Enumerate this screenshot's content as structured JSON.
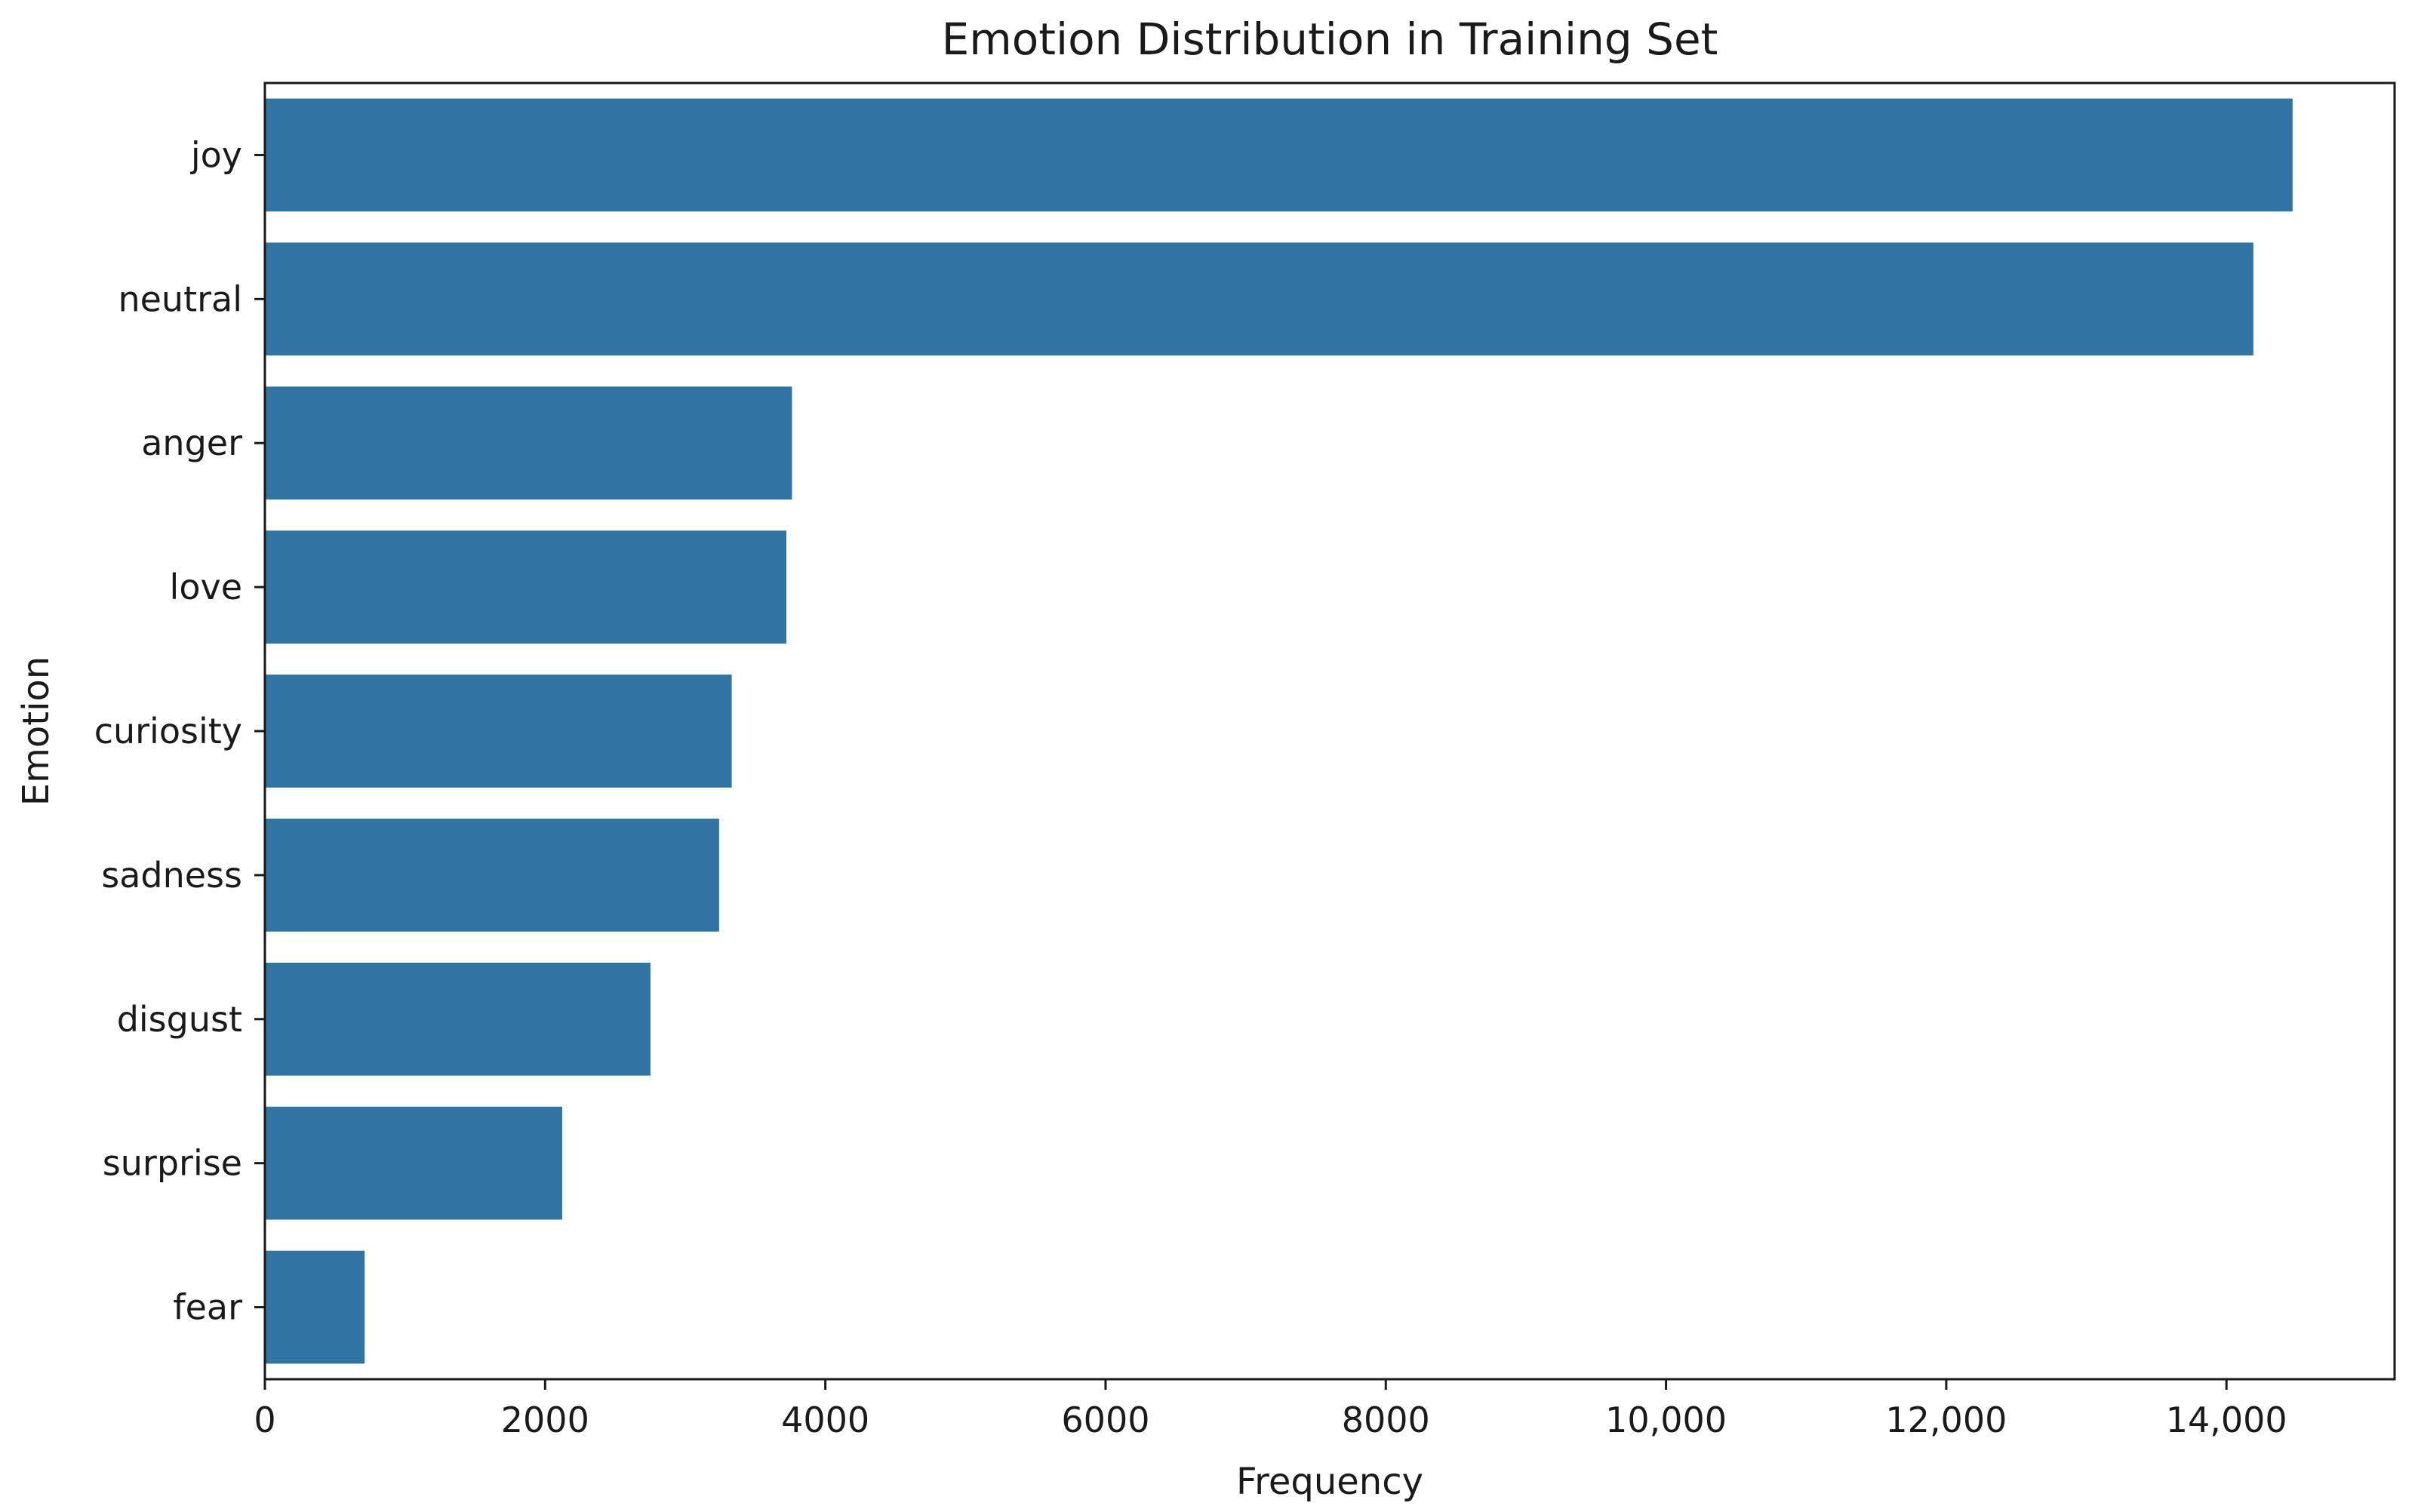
{
  "chart_data": {
    "type": "bar",
    "orientation": "horizontal",
    "title": "Emotion Distribution in Training Set",
    "xlabel": "Frequency",
    "ylabel": "Emotion",
    "categories": [
      "joy",
      "neutral",
      "anger",
      "love",
      "curiosity",
      "sadness",
      "disgust",
      "surprise",
      "fear"
    ],
    "values": [
      14480,
      14200,
      3770,
      3730,
      3340,
      3250,
      2760,
      2130,
      720
    ],
    "xlim": [
      0,
      15200
    ],
    "xticks": [
      0,
      2000,
      4000,
      6000,
      8000,
      10000,
      12000,
      14000
    ],
    "xtick_labels": [
      "0",
      "2000",
      "4000",
      "6000",
      "8000",
      "10,000",
      "12,000",
      "14,000"
    ],
    "grid": false,
    "bar_color": "#3274a1"
  }
}
